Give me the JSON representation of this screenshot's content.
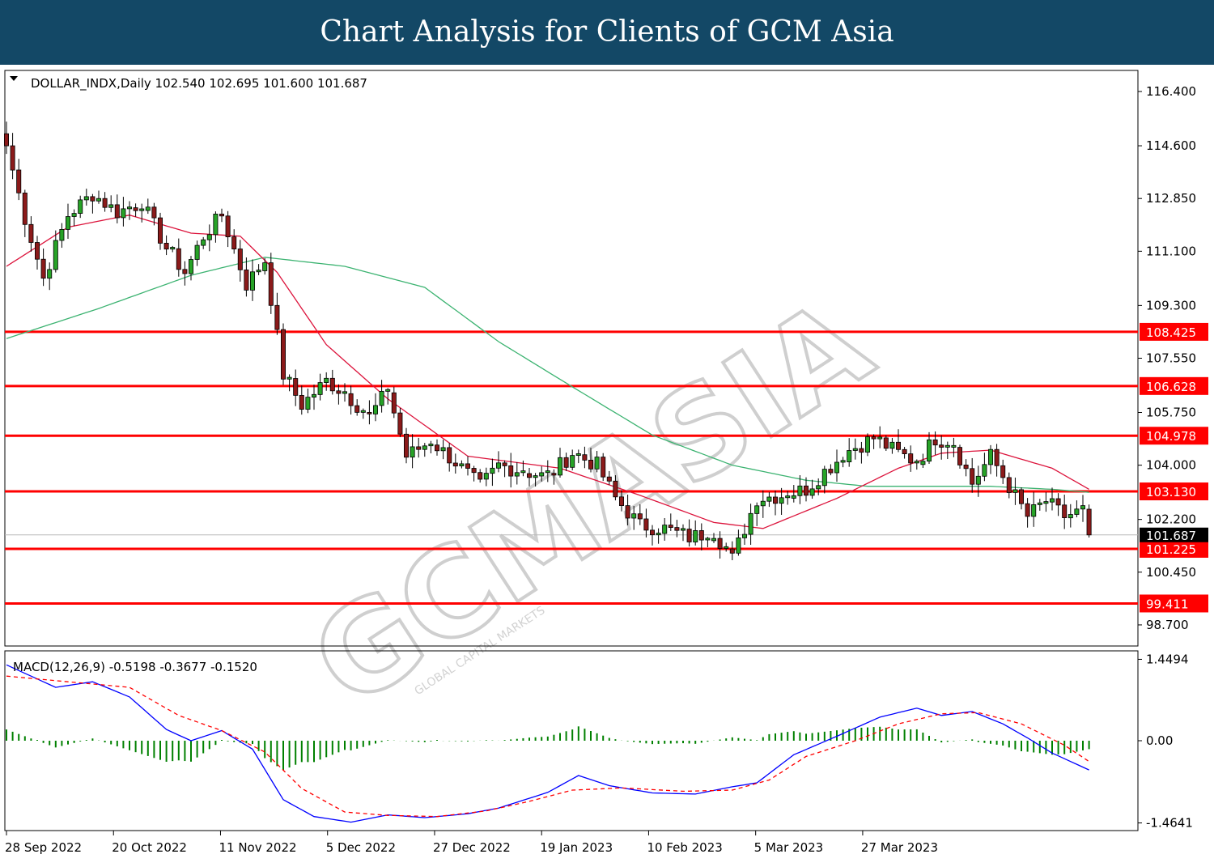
{
  "banner": {
    "title": "Chart Analysis for Clients of GCM Asia",
    "background": "#134866"
  },
  "watermark": {
    "brand": "GCMASIA",
    "tagline": "GLOBAL CAPITAL MARKETS"
  },
  "price_panel": {
    "info_text": "DOLLAR_INDX,Daily  102.540 102.695 101.600 101.687",
    "current_price_label": "101.687",
    "y_ticks": [
      "116.400",
      "114.600",
      "112.850",
      "111.100",
      "109.300",
      "107.550",
      "105.750",
      "104.000",
      "102.200",
      "100.450",
      "98.700"
    ]
  },
  "macd_panel": {
    "info_text": "MACD(12,26,9) -0.5198 -0.3677 -0.1520",
    "y_ticks": [
      "1.4494",
      "0.00",
      "-1.4641"
    ]
  },
  "x_ticks": [
    "28 Sep 2022",
    "20 Oct 2022",
    "11 Nov 2022",
    "5 Dec 2022",
    "27 Dec 2022",
    "19 Jan 2023",
    "10 Feb 2023",
    "5 Mar 2023",
    "27 Mar 2023"
  ],
  "colors": {
    "bull": "#27a327",
    "bear": "#8b1a1a",
    "level": "#ff0000",
    "fast_ma": "#dc143c",
    "slow_ma": "#3cb371",
    "macd": "#0000ff",
    "signal": "#ff0000",
    "histogram": "#008000"
  },
  "chart_data": [
    {
      "type": "candlestick",
      "symbol": "DOLLAR_INDX",
      "timeframe": "Daily",
      "ohlc_last": {
        "open": 102.54,
        "high": 102.695,
        "low": 101.6,
        "close": 101.687
      },
      "ylim": [
        98.0,
        117.1
      ],
      "levels": [
        108.425,
        106.628,
        104.978,
        103.13,
        101.225,
        99.411
      ],
      "anchors": [
        {
          "i": 0,
          "v": 114.6
        },
        {
          "i": 3,
          "v": 112.2
        },
        {
          "i": 6,
          "v": 110.2
        },
        {
          "i": 10,
          "v": 112.3
        },
        {
          "i": 14,
          "v": 113.0
        },
        {
          "i": 18,
          "v": 112.4
        },
        {
          "i": 22,
          "v": 112.7
        },
        {
          "i": 26,
          "v": 111.2
        },
        {
          "i": 29,
          "v": 110.4
        },
        {
          "i": 32,
          "v": 111.6
        },
        {
          "i": 35,
          "v": 112.3
        },
        {
          "i": 39,
          "v": 110.0
        },
        {
          "i": 42,
          "v": 110.8
        },
        {
          "i": 45,
          "v": 107.0
        },
        {
          "i": 48,
          "v": 106.0
        },
        {
          "i": 52,
          "v": 106.8
        },
        {
          "i": 55,
          "v": 106.4
        },
        {
          "i": 59,
          "v": 105.6
        },
        {
          "i": 62,
          "v": 106.5
        },
        {
          "i": 65,
          "v": 104.3
        },
        {
          "i": 69,
          "v": 104.8
        },
        {
          "i": 73,
          "v": 104.1
        },
        {
          "i": 77,
          "v": 103.3
        },
        {
          "i": 80,
          "v": 104.0
        },
        {
          "i": 84,
          "v": 103.8
        },
        {
          "i": 88,
          "v": 103.6
        },
        {
          "i": 92,
          "v": 104.4
        },
        {
          "i": 96,
          "v": 104.0
        },
        {
          "i": 99,
          "v": 102.9
        },
        {
          "i": 103,
          "v": 102.0
        },
        {
          "i": 107,
          "v": 101.9
        },
        {
          "i": 111,
          "v": 101.6
        },
        {
          "i": 115,
          "v": 101.8
        },
        {
          "i": 118,
          "v": 100.9
        },
        {
          "i": 122,
          "v": 102.9
        },
        {
          "i": 126,
          "v": 103.0
        },
        {
          "i": 130,
          "v": 103.2
        },
        {
          "i": 133,
          "v": 103.8
        },
        {
          "i": 137,
          "v": 104.5
        },
        {
          "i": 141,
          "v": 104.9
        },
        {
          "i": 145,
          "v": 104.4
        },
        {
          "i": 148,
          "v": 104.1
        },
        {
          "i": 151,
          "v": 104.9
        },
        {
          "i": 154,
          "v": 104.7
        },
        {
          "i": 157,
          "v": 103.4
        },
        {
          "i": 160,
          "v": 104.3
        },
        {
          "i": 163,
          "v": 103.3
        },
        {
          "i": 166,
          "v": 102.3
        },
        {
          "i": 169,
          "v": 102.8
        },
        {
          "i": 172,
          "v": 102.3
        },
        {
          "i": 175,
          "v": 102.5
        },
        {
          "i": 176,
          "v": 101.69
        }
      ],
      "fast_ma_anchors": [
        {
          "i": 0,
          "v": 110.6
        },
        {
          "i": 10,
          "v": 111.9
        },
        {
          "i": 20,
          "v": 112.3
        },
        {
          "i": 30,
          "v": 111.7
        },
        {
          "i": 38,
          "v": 111.6
        },
        {
          "i": 44,
          "v": 110.4
        },
        {
          "i": 52,
          "v": 108.0
        },
        {
          "i": 62,
          "v": 106.2
        },
        {
          "i": 75,
          "v": 104.3
        },
        {
          "i": 90,
          "v": 103.9
        },
        {
          "i": 103,
          "v": 103.0
        },
        {
          "i": 115,
          "v": 102.1
        },
        {
          "i": 123,
          "v": 101.9
        },
        {
          "i": 135,
          "v": 102.9
        },
        {
          "i": 145,
          "v": 103.9
        },
        {
          "i": 152,
          "v": 104.4
        },
        {
          "i": 160,
          "v": 104.5
        },
        {
          "i": 170,
          "v": 103.9
        },
        {
          "i": 176,
          "v": 103.2
        }
      ],
      "slow_ma_anchors": [
        {
          "i": 0,
          "v": 108.2
        },
        {
          "i": 15,
          "v": 109.2
        },
        {
          "i": 30,
          "v": 110.3
        },
        {
          "i": 42,
          "v": 110.9
        },
        {
          "i": 55,
          "v": 110.6
        },
        {
          "i": 68,
          "v": 109.9
        },
        {
          "i": 80,
          "v": 108.1
        },
        {
          "i": 92,
          "v": 106.6
        },
        {
          "i": 105,
          "v": 105.0
        },
        {
          "i": 118,
          "v": 104.0
        },
        {
          "i": 130,
          "v": 103.5
        },
        {
          "i": 140,
          "v": 103.3
        },
        {
          "i": 150,
          "v": 103.3
        },
        {
          "i": 160,
          "v": 103.3
        },
        {
          "i": 170,
          "v": 103.2
        },
        {
          "i": 176,
          "v": 103.1
        }
      ]
    },
    {
      "type": "macd",
      "params": [
        12,
        26,
        9
      ],
      "values_last": {
        "macd": -0.5198,
        "signal": -0.3677,
        "histogram": -0.152
      },
      "ylim": [
        -1.6,
        1.6
      ],
      "macd_anchors": [
        {
          "i": 0,
          "v": 1.35
        },
        {
          "i": 8,
          "v": 0.95
        },
        {
          "i": 14,
          "v": 1.05
        },
        {
          "i": 20,
          "v": 0.78
        },
        {
          "i": 26,
          "v": 0.2
        },
        {
          "i": 30,
          "v": 0.0
        },
        {
          "i": 35,
          "v": 0.18
        },
        {
          "i": 40,
          "v": -0.15
        },
        {
          "i": 45,
          "v": -1.05
        },
        {
          "i": 50,
          "v": -1.35
        },
        {
          "i": 56,
          "v": -1.45
        },
        {
          "i": 62,
          "v": -1.32
        },
        {
          "i": 68,
          "v": -1.37
        },
        {
          "i": 75,
          "v": -1.3
        },
        {
          "i": 80,
          "v": -1.2
        },
        {
          "i": 88,
          "v": -0.92
        },
        {
          "i": 93,
          "v": -0.62
        },
        {
          "i": 98,
          "v": -0.8
        },
        {
          "i": 105,
          "v": -0.93
        },
        {
          "i": 112,
          "v": -0.95
        },
        {
          "i": 118,
          "v": -0.82
        },
        {
          "i": 122,
          "v": -0.75
        },
        {
          "i": 128,
          "v": -0.25
        },
        {
          "i": 135,
          "v": 0.08
        },
        {
          "i": 142,
          "v": 0.42
        },
        {
          "i": 148,
          "v": 0.58
        },
        {
          "i": 152,
          "v": 0.45
        },
        {
          "i": 157,
          "v": 0.52
        },
        {
          "i": 162,
          "v": 0.3
        },
        {
          "i": 166,
          "v": 0.05
        },
        {
          "i": 170,
          "v": -0.22
        },
        {
          "i": 176,
          "v": -0.52
        }
      ],
      "signal_anchors": [
        {
          "i": 0,
          "v": 1.15
        },
        {
          "i": 10,
          "v": 1.05
        },
        {
          "i": 20,
          "v": 0.95
        },
        {
          "i": 28,
          "v": 0.45
        },
        {
          "i": 35,
          "v": 0.18
        },
        {
          "i": 42,
          "v": -0.2
        },
        {
          "i": 48,
          "v": -0.85
        },
        {
          "i": 55,
          "v": -1.27
        },
        {
          "i": 62,
          "v": -1.33
        },
        {
          "i": 70,
          "v": -1.35
        },
        {
          "i": 78,
          "v": -1.25
        },
        {
          "i": 85,
          "v": -1.08
        },
        {
          "i": 92,
          "v": -0.88
        },
        {
          "i": 100,
          "v": -0.84
        },
        {
          "i": 110,
          "v": -0.9
        },
        {
          "i": 118,
          "v": -0.88
        },
        {
          "i": 124,
          "v": -0.7
        },
        {
          "i": 130,
          "v": -0.28
        },
        {
          "i": 138,
          "v": 0.0
        },
        {
          "i": 145,
          "v": 0.3
        },
        {
          "i": 152,
          "v": 0.48
        },
        {
          "i": 158,
          "v": 0.5
        },
        {
          "i": 165,
          "v": 0.3
        },
        {
          "i": 172,
          "v": -0.08
        },
        {
          "i": 176,
          "v": -0.37
        }
      ]
    }
  ]
}
